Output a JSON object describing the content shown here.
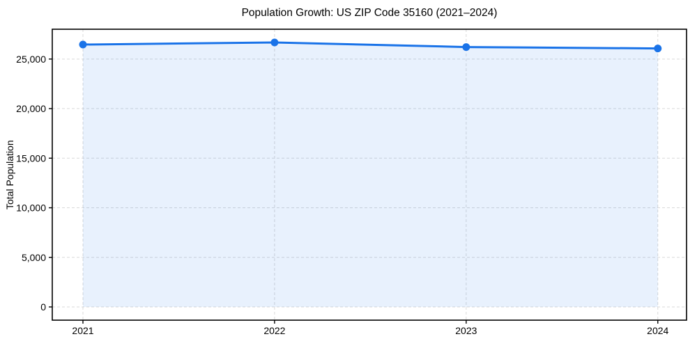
{
  "chart_data": {
    "type": "line",
    "title": "Population Growth: US ZIP Code 35160 (2021–2024)",
    "xlabel": "",
    "ylabel": "Total Population",
    "x": [
      2021,
      2022,
      2023,
      2024
    ],
    "series": [
      {
        "name": "Total Population",
        "values": [
          26460,
          26670,
          26210,
          26070
        ]
      }
    ],
    "area_fill": true,
    "fill_to": 0,
    "xlim": [
      2020.84,
      2024.15
    ],
    "ylim": [
      -1334,
      28006
    ],
    "xticks": [
      2021,
      2022,
      2023,
      2024
    ],
    "xtick_labels": [
      "2021",
      "2022",
      "2023",
      "2024"
    ],
    "yticks": [
      0,
      5000,
      10000,
      15000,
      20000,
      25000
    ],
    "ytick_labels": [
      "0",
      "5,000",
      "10,000",
      "15,000",
      "20,000",
      "25,000"
    ],
    "grid": true,
    "grid_style": "dashed",
    "legend": "none",
    "marker": "circle",
    "marker_radius": 5.5,
    "line_width": 3,
    "fill_opacity": 0.1,
    "colors": {
      "line": "#1a73e8",
      "fill": "#e8f0fd",
      "grid": "#d9d9d9",
      "axis": "#000000",
      "text": "#000000",
      "background": "#ffffff"
    }
  }
}
